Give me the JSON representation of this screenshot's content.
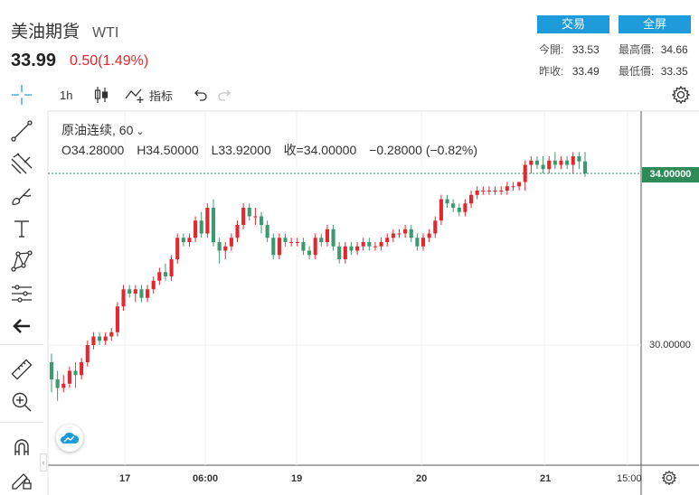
{
  "header": {
    "title": "美油期貨",
    "symbol": "WTI",
    "price": "33.99",
    "change": "0.50(1.49%)",
    "trade_button": "交易",
    "fullscreen_button": "全屏",
    "stats": {
      "open_label": "今開:",
      "open_value": "33.53",
      "high_label": "最高價:",
      "high_value": "34.66",
      "prev_close_label": "昨收:",
      "prev_close_value": "33.49",
      "low_label": "最低價:",
      "low_value": "33.35"
    }
  },
  "toolbar": {
    "interval": "1h",
    "indicators_label": "指标"
  },
  "left_tools": [
    "crosshair-icon",
    "trendline-icon",
    "fib-icon",
    "brush-icon",
    "text-icon",
    "pattern-icon",
    "measure-icon",
    "back-arrow-icon",
    "ruler-icon",
    "zoom-icon",
    "magnet-icon",
    "pencil-lock-icon"
  ],
  "legend": {
    "symbol_interval": "原油连续, 60",
    "open": "O34.28000",
    "high": "H34.50000",
    "low": "L33.92000",
    "close": "收=34.00000",
    "change": "−0.28000 (−0.82%)"
  },
  "chart_data": {
    "type": "candlestick",
    "y_axis_labels": [
      "34.00000",
      "30.00000"
    ],
    "current_price_label": "34.00000",
    "x_axis_labels": [
      "17",
      "06:00",
      "19",
      "20",
      "21",
      "15:00"
    ],
    "up_color": "#e2282e",
    "down_color": "#3d9970",
    "candles": [
      [
        29.6,
        29.8,
        28.9,
        29.2
      ],
      [
        29.2,
        29.4,
        28.7,
        29.0
      ],
      [
        29.0,
        29.3,
        28.9,
        29.1
      ],
      [
        29.1,
        29.5,
        29.0,
        29.4
      ],
      [
        29.4,
        29.6,
        29.0,
        29.3
      ],
      [
        29.3,
        29.7,
        29.2,
        29.6
      ],
      [
        29.6,
        30.1,
        29.5,
        30.0
      ],
      [
        30.0,
        30.3,
        29.9,
        30.2
      ],
      [
        30.2,
        30.3,
        30.0,
        30.1
      ],
      [
        30.1,
        30.3,
        30.0,
        30.2
      ],
      [
        30.2,
        30.4,
        30.1,
        30.3
      ],
      [
        30.3,
        31.0,
        30.2,
        30.9
      ],
      [
        30.9,
        31.4,
        30.8,
        31.3
      ],
      [
        31.3,
        31.4,
        31.1,
        31.2
      ],
      [
        31.2,
        31.4,
        31.0,
        31.3
      ],
      [
        31.3,
        31.4,
        31.0,
        31.1
      ],
      [
        31.1,
        31.4,
        31.0,
        31.3
      ],
      [
        31.3,
        31.6,
        31.2,
        31.5
      ],
      [
        31.5,
        31.8,
        31.4,
        31.7
      ],
      [
        31.7,
        31.9,
        31.5,
        31.6
      ],
      [
        31.6,
        32.1,
        31.5,
        32.0
      ],
      [
        32.0,
        32.6,
        31.9,
        32.5
      ],
      [
        32.5,
        32.6,
        32.3,
        32.4
      ],
      [
        32.4,
        32.6,
        32.3,
        32.5
      ],
      [
        32.5,
        33.0,
        32.4,
        32.9
      ],
      [
        32.9,
        33.1,
        32.5,
        32.6
      ],
      [
        32.6,
        33.3,
        32.5,
        33.2
      ],
      [
        33.2,
        33.4,
        32.3,
        32.4
      ],
      [
        32.4,
        32.5,
        31.9,
        32.2
      ],
      [
        32.2,
        32.4,
        32.0,
        32.3
      ],
      [
        32.3,
        32.6,
        32.2,
        32.5
      ],
      [
        32.5,
        32.9,
        32.4,
        32.8
      ],
      [
        32.8,
        33.3,
        32.7,
        33.2
      ],
      [
        33.2,
        33.3,
        32.9,
        33.0
      ],
      [
        33.0,
        33.2,
        32.8,
        33.0
      ],
      [
        33.0,
        33.1,
        32.6,
        32.8
      ],
      [
        32.8,
        32.9,
        32.4,
        32.5
      ],
      [
        32.5,
        32.6,
        32.0,
        32.1
      ],
      [
        32.1,
        32.6,
        32.0,
        32.5
      ],
      [
        32.5,
        32.6,
        32.3,
        32.4
      ],
      [
        32.4,
        32.5,
        32.3,
        32.4
      ],
      [
        32.4,
        32.5,
        32.3,
        32.4
      ],
      [
        32.4,
        32.5,
        32.1,
        32.2
      ],
      [
        32.2,
        32.3,
        32.0,
        32.1
      ],
      [
        32.1,
        32.6,
        32.0,
        32.5
      ],
      [
        32.5,
        32.6,
        32.3,
        32.4
      ],
      [
        32.4,
        32.8,
        32.3,
        32.7
      ],
      [
        32.7,
        32.8,
        32.2,
        32.3
      ],
      [
        32.3,
        32.4,
        31.9,
        32.0
      ],
      [
        32.0,
        32.4,
        31.9,
        32.3
      ],
      [
        32.3,
        32.4,
        32.1,
        32.2
      ],
      [
        32.2,
        32.4,
        32.1,
        32.3
      ],
      [
        32.3,
        32.5,
        32.2,
        32.4
      ],
      [
        32.4,
        32.5,
        32.2,
        32.3
      ],
      [
        32.3,
        32.4,
        32.2,
        32.3
      ],
      [
        32.3,
        32.5,
        32.2,
        32.4
      ],
      [
        32.4,
        32.6,
        32.3,
        32.5
      ],
      [
        32.5,
        32.7,
        32.4,
        32.6
      ],
      [
        32.6,
        32.7,
        32.5,
        32.6
      ],
      [
        32.6,
        32.8,
        32.5,
        32.7
      ],
      [
        32.7,
        32.8,
        32.4,
        32.5
      ],
      [
        32.5,
        32.6,
        32.2,
        32.3
      ],
      [
        32.3,
        32.6,
        32.2,
        32.5
      ],
      [
        32.5,
        32.7,
        32.4,
        32.6
      ],
      [
        32.6,
        33.0,
        32.5,
        32.9
      ],
      [
        32.9,
        33.5,
        32.8,
        33.4
      ],
      [
        33.4,
        33.5,
        33.2,
        33.3
      ],
      [
        33.3,
        33.4,
        33.1,
        33.2
      ],
      [
        33.2,
        33.3,
        33.0,
        33.1
      ],
      [
        33.1,
        33.4,
        33.0,
        33.3
      ],
      [
        33.3,
        33.6,
        33.2,
        33.5
      ],
      [
        33.5,
        33.7,
        33.4,
        33.6
      ],
      [
        33.6,
        33.7,
        33.5,
        33.6
      ],
      [
        33.6,
        33.7,
        33.5,
        33.6
      ],
      [
        33.6,
        33.7,
        33.5,
        33.6
      ],
      [
        33.6,
        33.7,
        33.5,
        33.6
      ],
      [
        33.6,
        33.8,
        33.5,
        33.7
      ],
      [
        33.7,
        33.8,
        33.6,
        33.7
      ],
      [
        33.7,
        33.8,
        33.6,
        33.8
      ],
      [
        33.8,
        34.3,
        33.6,
        34.2
      ],
      [
        34.2,
        34.4,
        34.0,
        34.3
      ],
      [
        34.3,
        34.4,
        34.1,
        34.2
      ],
      [
        34.2,
        34.4,
        34.0,
        34.1
      ],
      [
        34.1,
        34.4,
        34.0,
        34.3
      ],
      [
        34.3,
        34.5,
        34.1,
        34.2
      ],
      [
        34.2,
        34.4,
        34.1,
        34.3
      ],
      [
        34.3,
        34.4,
        34.1,
        34.2
      ],
      [
        34.2,
        34.5,
        34.0,
        34.4
      ],
      [
        34.4,
        34.5,
        34.1,
        34.28
      ],
      [
        34.28,
        34.5,
        33.92,
        34.0
      ]
    ]
  }
}
